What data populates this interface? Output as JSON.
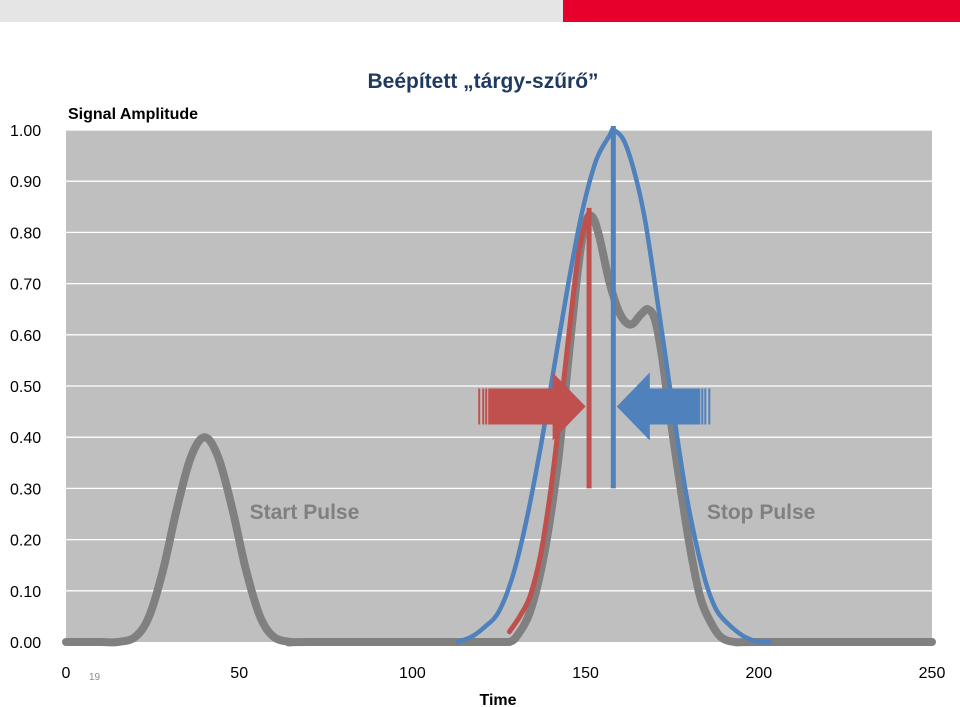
{
  "slide": {
    "title": "Beépített „tárgy-szűrő”",
    "page_number": "19"
  },
  "colors": {
    "top_bar_left": "#e5e5e5",
    "top_bar_right": "#e8002d",
    "plot_bg": "#bfbfbf",
    "gridline": "#ffffff",
    "gray_curve": "#808080",
    "red_curve": "#c0504d",
    "blue_curve": "#4f81bd"
  },
  "chart_data": {
    "type": "line",
    "ylabel": "Signal Amplitude",
    "xlabel": "Time",
    "xlim": [
      0,
      250
    ],
    "ylim": [
      0,
      1
    ],
    "x_ticks": [
      "0",
      "50",
      "100",
      "150",
      "200",
      "250"
    ],
    "x_tick_values": [
      0,
      50,
      100,
      150,
      200,
      250
    ],
    "y_ticks": [
      "0.00",
      "0.10",
      "0.20",
      "0.30",
      "0.40",
      "0.50",
      "0.60",
      "0.70",
      "0.80",
      "0.90",
      "1.00"
    ],
    "y_tick_values": [
      0,
      0.1,
      0.2,
      0.3,
      0.4,
      0.5,
      0.6,
      0.7,
      0.8,
      0.9,
      1.0
    ],
    "grid": true,
    "series": [
      {
        "key": "start",
        "color": "#808080",
        "points": [
          [
            0,
            0
          ],
          [
            10,
            0
          ],
          [
            15,
            0
          ],
          [
            20,
            0.01
          ],
          [
            24,
            0.05
          ],
          [
            28,
            0.14
          ],
          [
            32,
            0.26
          ],
          [
            36,
            0.36
          ],
          [
            40,
            0.4
          ],
          [
            44,
            0.36
          ],
          [
            48,
            0.26
          ],
          [
            52,
            0.14
          ],
          [
            56,
            0.05
          ],
          [
            60,
            0.01
          ],
          [
            65,
            0
          ],
          [
            70,
            0
          ],
          [
            128,
            0
          ]
        ]
      },
      {
        "key": "stop",
        "color": "#808080",
        "points": [
          [
            128,
            0
          ],
          [
            130,
            0.01
          ],
          [
            134,
            0.06
          ],
          [
            138,
            0.17
          ],
          [
            142,
            0.35
          ],
          [
            145,
            0.55
          ],
          [
            148,
            0.74
          ],
          [
            150,
            0.82
          ],
          [
            152,
            0.83
          ],
          [
            154,
            0.79
          ],
          [
            157,
            0.7
          ],
          [
            160,
            0.64
          ],
          [
            163,
            0.62
          ],
          [
            166,
            0.64
          ],
          [
            168,
            0.65
          ],
          [
            170,
            0.63
          ],
          [
            172,
            0.56
          ],
          [
            174,
            0.46
          ],
          [
            177,
            0.32
          ],
          [
            180,
            0.19
          ],
          [
            183,
            0.09
          ],
          [
            186,
            0.04
          ],
          [
            189,
            0.01
          ],
          [
            193,
            0
          ],
          [
            200,
            0
          ],
          [
            250,
            0
          ]
        ]
      },
      {
        "key": "red",
        "color": "#c0504d",
        "points": [
          [
            128,
            0.02
          ],
          [
            131,
            0.05
          ],
          [
            134,
            0.09
          ],
          [
            137,
            0.17
          ],
          [
            140,
            0.3
          ],
          [
            143,
            0.47
          ],
          [
            146,
            0.65
          ],
          [
            148,
            0.76
          ],
          [
            150,
            0.82
          ],
          [
            151,
            0.84
          ]
        ]
      },
      {
        "key": "blue",
        "color": "#4f81bd",
        "points": [
          [
            113,
            0
          ],
          [
            117,
            0.01
          ],
          [
            121,
            0.03
          ],
          [
            125,
            0.06
          ],
          [
            129,
            0.13
          ],
          [
            133,
            0.24
          ],
          [
            137,
            0.38
          ],
          [
            141,
            0.54
          ],
          [
            145,
            0.7
          ],
          [
            149,
            0.84
          ],
          [
            153,
            0.94
          ],
          [
            157,
            0.99
          ],
          [
            158,
            1.0
          ],
          [
            161,
            0.98
          ],
          [
            164,
            0.92
          ],
          [
            167,
            0.83
          ],
          [
            170,
            0.7
          ],
          [
            173,
            0.56
          ],
          [
            176,
            0.42
          ],
          [
            179,
            0.29
          ],
          [
            182,
            0.19
          ],
          [
            185,
            0.11
          ],
          [
            188,
            0.06
          ],
          [
            192,
            0.03
          ],
          [
            196,
            0.01
          ],
          [
            200,
            0
          ],
          [
            203,
            0
          ]
        ]
      }
    ],
    "vertical_lines": [
      {
        "key": "red",
        "x": 151,
        "y_min": 0.3,
        "y_max": 0.84,
        "color": "#c0504d"
      },
      {
        "key": "blue",
        "x": 158,
        "y_min": 0.3,
        "y_max": 1.0,
        "color": "#4f81bd"
      }
    ],
    "arrows": [
      {
        "key": "red-right",
        "direction": "right",
        "x_from": 119,
        "x_to": 150,
        "y": 0.46,
        "color": "#c0504d"
      },
      {
        "key": "blue-left",
        "direction": "left",
        "x_from": 186,
        "x_to": 159,
        "y": 0.46,
        "color": "#4f81bd"
      }
    ],
    "annotations": [
      {
        "key": "start-pulse",
        "text": "Start Pulse",
        "x": 53,
        "y": 0.24
      },
      {
        "key": "stop-pulse",
        "text": "Stop Pulse",
        "x": 185,
        "y": 0.24
      }
    ]
  }
}
